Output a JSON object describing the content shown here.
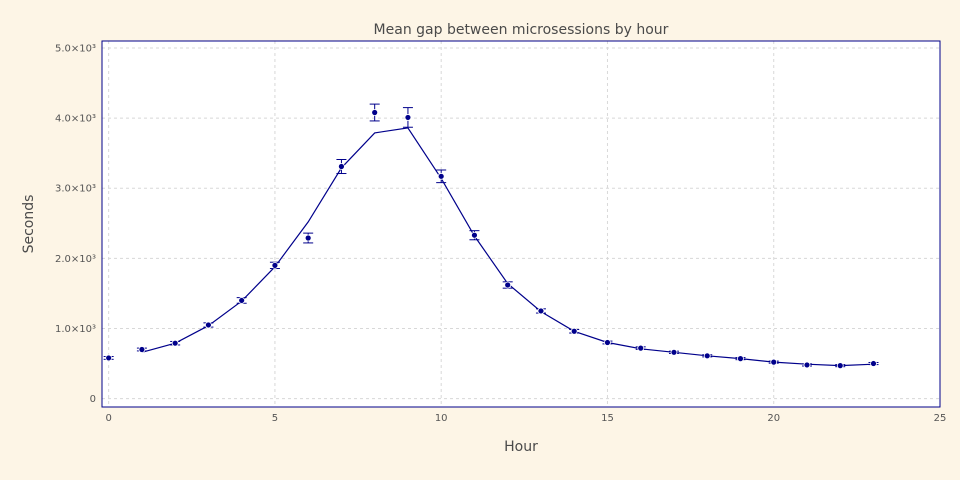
{
  "chart_data": {
    "type": "scatter",
    "title": "Mean gap between microsessions by hour",
    "xlabel": "Hour",
    "ylabel": "Seconds",
    "xlim": [
      -0.2,
      25
    ],
    "ylim": [
      -120,
      5100
    ],
    "x_ticks": [
      {
        "v": 0,
        "label": "0"
      },
      {
        "v": 5,
        "label": "5"
      },
      {
        "v": 10,
        "label": "10"
      },
      {
        "v": 15,
        "label": "15"
      },
      {
        "v": 20,
        "label": "20"
      },
      {
        "v": 25,
        "label": "25"
      }
    ],
    "y_ticks": [
      {
        "v": 0,
        "label": "0"
      },
      {
        "v": 1000,
        "label": "1.0×10³"
      },
      {
        "v": 2000,
        "label": "2.0×10³"
      },
      {
        "v": 3000,
        "label": "3.0×10³"
      },
      {
        "v": 4000,
        "label": "4.0×10³"
      },
      {
        "v": 5000,
        "label": "5.0×10³"
      }
    ],
    "grid": true,
    "legend": "none",
    "series": [
      {
        "kind": "points_with_error",
        "x": [
          0,
          1,
          2,
          3,
          4,
          5,
          6,
          7,
          8,
          9,
          10,
          11,
          12,
          13,
          14,
          15,
          16,
          17,
          18,
          19,
          20,
          21,
          22,
          23
        ],
        "y": [
          580,
          700,
          790,
          1050,
          1400,
          1900,
          2290,
          3310,
          4080,
          4010,
          3170,
          2330,
          1620,
          1250,
          960,
          800,
          720,
          660,
          610,
          570,
          520,
          480,
          470,
          500
        ],
        "err": [
          20,
          20,
          25,
          30,
          40,
          45,
          70,
          100,
          120,
          140,
          90,
          65,
          45,
          30,
          25,
          20,
          18,
          16,
          15,
          15,
          15,
          15,
          15,
          15
        ]
      },
      {
        "kind": "line",
        "x": [
          1,
          2,
          3,
          4,
          5,
          6,
          7,
          8,
          9,
          10,
          11,
          12,
          13,
          14,
          15,
          16,
          17,
          18,
          19,
          20,
          21,
          22,
          23
        ],
        "y": [
          660,
          790,
          1040,
          1390,
          1880,
          2520,
          3290,
          3790,
          3860,
          3140,
          2320,
          1640,
          1240,
          960,
          800,
          710,
          660,
          610,
          570,
          520,
          490,
          470,
          490
        ]
      }
    ],
    "colors": {
      "series": "#00008b",
      "plot_border": "#00008b",
      "grid": "#d8d8d8",
      "background": "#fdf5e6"
    }
  }
}
